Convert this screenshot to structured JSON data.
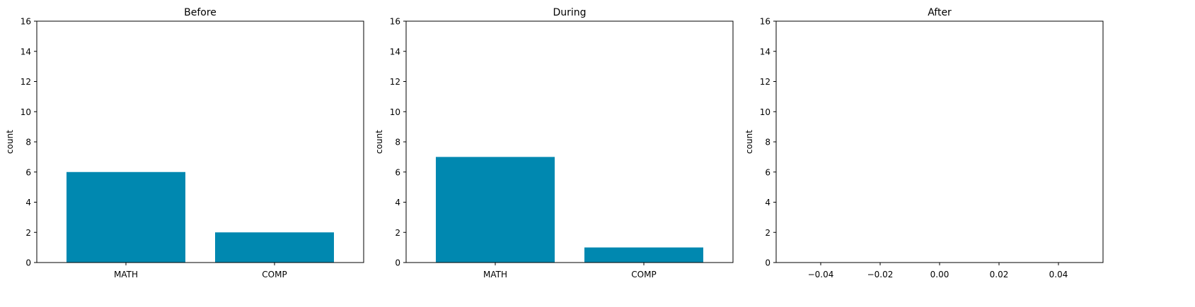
{
  "chart_data": [
    {
      "type": "bar",
      "title": "Before",
      "xlabel": "",
      "ylabel": "count",
      "categories": [
        "MATH",
        "COMP"
      ],
      "values": [
        6,
        2
      ],
      "ylim": [
        0,
        16
      ],
      "yticks": [
        "0",
        "2",
        "4",
        "6",
        "8",
        "10",
        "12",
        "14",
        "16"
      ],
      "bar_color": "#0088b0",
      "grid": false
    },
    {
      "type": "bar",
      "title": "During",
      "xlabel": "",
      "ylabel": "count",
      "categories": [
        "MATH",
        "COMP"
      ],
      "values": [
        7,
        1
      ],
      "ylim": [
        0,
        16
      ],
      "yticks": [
        "0",
        "2",
        "4",
        "6",
        "8",
        "10",
        "12",
        "14",
        "16"
      ],
      "bar_color": "#0088b0",
      "grid": false
    },
    {
      "type": "bar",
      "title": "After",
      "xlabel": "",
      "ylabel": "count",
      "categories": [],
      "values": [],
      "ylim": [
        0,
        16
      ],
      "xlim": [
        -0.055,
        0.055
      ],
      "yticks": [
        "0",
        "2",
        "4",
        "6",
        "8",
        "10",
        "12",
        "14",
        "16"
      ],
      "xticks": [
        "−0.04",
        "−0.02",
        "0.00",
        "0.02",
        "0.04"
      ],
      "bar_color": "#0088b0",
      "grid": false
    }
  ]
}
